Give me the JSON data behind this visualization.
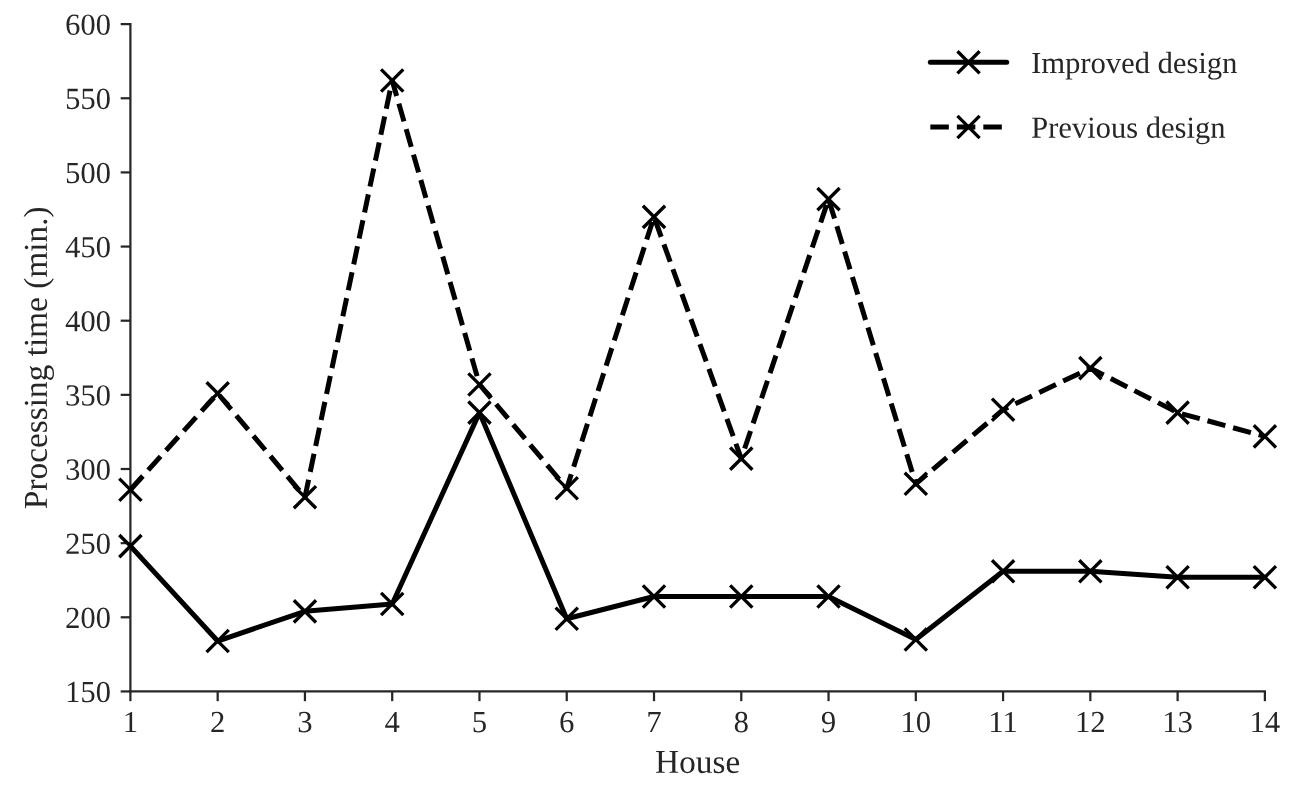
{
  "chart_data": {
    "type": "line",
    "xlabel": "House",
    "ylabel": "Processing time (min.)",
    "x": [
      1,
      2,
      3,
      4,
      5,
      6,
      7,
      8,
      9,
      10,
      11,
      12,
      13,
      14
    ],
    "series": [
      {
        "name": "Improved design",
        "color": "#000000",
        "line_style": "solid",
        "values": [
          248,
          184,
          204,
          209,
          338,
          199,
          214,
          214,
          214,
          185,
          231,
          231,
          227,
          227
        ]
      },
      {
        "name": "Previous design",
        "color": "#000000",
        "line_style": "dashed",
        "values": [
          286,
          351,
          281,
          562,
          357,
          287,
          470,
          307,
          482,
          290,
          340,
          368,
          338,
          322
        ]
      }
    ],
    "xlim": [
      1,
      14
    ],
    "xticks": [
      1,
      2,
      3,
      4,
      5,
      6,
      7,
      8,
      9,
      10,
      11,
      12,
      13,
      14
    ],
    "ylim": [
      150,
      600
    ],
    "yticks": [
      150,
      200,
      250,
      300,
      350,
      400,
      450,
      500,
      550,
      600
    ],
    "marker": "cross",
    "grid": false,
    "legend": "top right"
  }
}
